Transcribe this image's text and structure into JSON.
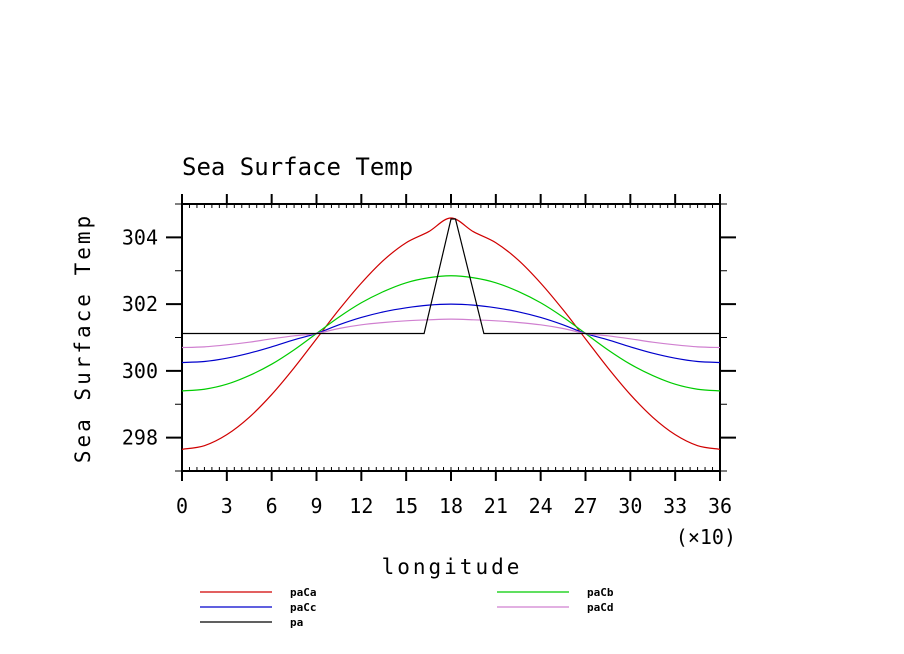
{
  "chart_data": {
    "type": "line",
    "title": "Sea Surface Temp",
    "xlabel": "longitude",
    "ylabel": "Sea Surface Temp",
    "x_scale_note": "(×10)",
    "xlim": [
      0,
      36
    ],
    "ylim": [
      297,
      305
    ],
    "xticks": [
      0,
      3,
      6,
      9,
      12,
      15,
      18,
      21,
      24,
      27,
      30,
      33,
      36
    ],
    "xtick_labels": [
      "0",
      "3",
      "6",
      "9",
      "12",
      "15",
      "18",
      "21",
      "24",
      "27",
      "30",
      "33",
      "36"
    ],
    "yticks": [
      298,
      300,
      302,
      304
    ],
    "ytick_labels": [
      "298",
      "300",
      "302",
      "304"
    ],
    "series": [
      {
        "name": "paCa",
        "color": "#d00000",
        "x": [
          0,
          1.5,
          3,
          4.5,
          6,
          7.5,
          9,
          10.5,
          12,
          13.5,
          15,
          16.5,
          18,
          19.5,
          21,
          22.5,
          24,
          25.5,
          27,
          28.5,
          30,
          31.5,
          33,
          34.5,
          36
        ],
        "values": [
          297.65,
          297.76,
          298.09,
          298.61,
          299.29,
          300.09,
          300.96,
          301.83,
          302.63,
          303.32,
          303.84,
          304.17,
          304.58,
          304.17,
          303.84,
          303.32,
          302.63,
          301.83,
          300.96,
          300.09,
          299.29,
          298.61,
          298.09,
          297.76,
          297.65
        ]
      },
      {
        "name": "paCb",
        "color": "#00cc00",
        "x": [
          0,
          1.5,
          3,
          4.5,
          6,
          7.5,
          9,
          10.5,
          12,
          13.5,
          15,
          16.5,
          18,
          19.5,
          21,
          22.5,
          24,
          25.5,
          27,
          28.5,
          30,
          31.5,
          33,
          34.5,
          36
        ],
        "values": [
          299.4,
          299.45,
          299.6,
          299.86,
          300.2,
          300.63,
          301.12,
          301.61,
          302.04,
          302.38,
          302.64,
          302.79,
          302.85,
          302.79,
          302.64,
          302.38,
          302.04,
          301.61,
          301.12,
          300.63,
          300.2,
          299.86,
          299.6,
          299.45,
          299.4
        ]
      },
      {
        "name": "paCc",
        "color": "#0000cc",
        "x": [
          0,
          1.5,
          3,
          4.5,
          6,
          7.5,
          9,
          10.5,
          12,
          13.5,
          15,
          16.5,
          18,
          19.5,
          21,
          22.5,
          24,
          25.5,
          27,
          28.5,
          30,
          31.5,
          33,
          34.5,
          36
        ],
        "values": [
          300.25,
          300.28,
          300.38,
          300.53,
          300.72,
          300.93,
          301.12,
          301.38,
          301.6,
          301.77,
          301.89,
          301.97,
          302.0,
          301.97,
          301.89,
          301.77,
          301.6,
          301.38,
          301.12,
          300.93,
          300.72,
          300.53,
          300.38,
          300.28,
          300.25
        ]
      },
      {
        "name": "paCd",
        "color": "#d080d0",
        "x": [
          0,
          1.5,
          3,
          4.5,
          6,
          7.5,
          9,
          10.5,
          12,
          13.5,
          15,
          16.5,
          18,
          19.5,
          21,
          22.5,
          24,
          25.5,
          27,
          28.5,
          30,
          31.5,
          33,
          34.5,
          36
        ],
        "values": [
          300.7,
          300.72,
          300.78,
          300.86,
          300.96,
          301.05,
          301.12,
          301.27,
          301.38,
          301.45,
          301.5,
          301.53,
          301.55,
          301.53,
          301.5,
          301.45,
          301.38,
          301.27,
          301.12,
          301.05,
          300.96,
          300.86,
          300.78,
          300.72,
          300.7
        ]
      },
      {
        "name": "pa",
        "color": "#000000",
        "x": [
          0,
          16.2,
          18,
          18.3,
          20.2,
          36
        ],
        "values": [
          301.12,
          301.12,
          304.55,
          304.55,
          301.12,
          301.12
        ]
      }
    ],
    "legend": {
      "position": "bottom",
      "columns": [
        [
          "paCa",
          "paCc",
          "pa"
        ],
        [
          "paCb",
          "paCd"
        ]
      ]
    }
  }
}
